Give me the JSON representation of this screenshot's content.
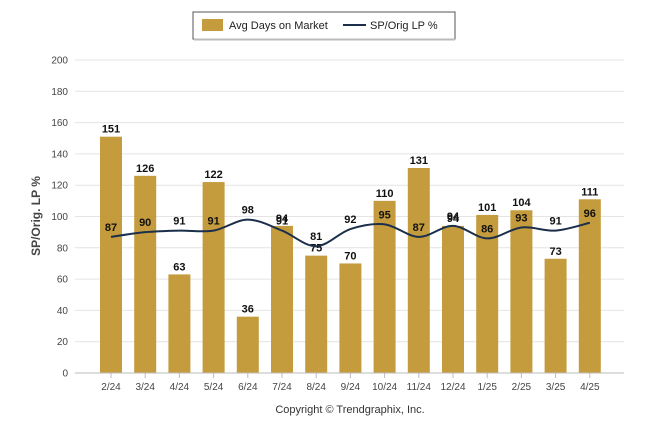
{
  "chart_data": {
    "type": "bar",
    "categories": [
      "2/24",
      "3/24",
      "4/24",
      "5/24",
      "6/24",
      "7/24",
      "8/24",
      "9/24",
      "10/24",
      "11/24",
      "12/24",
      "1/25",
      "2/25",
      "3/25",
      "4/25"
    ],
    "series": [
      {
        "name": "Avg Days on Market",
        "type": "bar",
        "color": "#c49c3e",
        "values": [
          151,
          126,
          63,
          122,
          36,
          94,
          75,
          70,
          110,
          131,
          94,
          101,
          104,
          73,
          111
        ]
      },
      {
        "name": "SP/Orig LP %",
        "type": "line",
        "color": "#1b2f4b",
        "values": [
          87,
          90,
          91,
          91,
          98,
          91,
          81,
          92,
          95,
          87,
          94,
          86,
          93,
          91,
          96
        ]
      }
    ],
    "ylabel": "SP/Orig. LP %",
    "ylim": [
      0,
      200
    ],
    "yticks": [
      0,
      20,
      40,
      60,
      80,
      100,
      120,
      140,
      160,
      180,
      200
    ],
    "grid": true,
    "legend_position": "top-center"
  },
  "footer": {
    "copyright": "Copyright © Trendgraphix, Inc."
  }
}
